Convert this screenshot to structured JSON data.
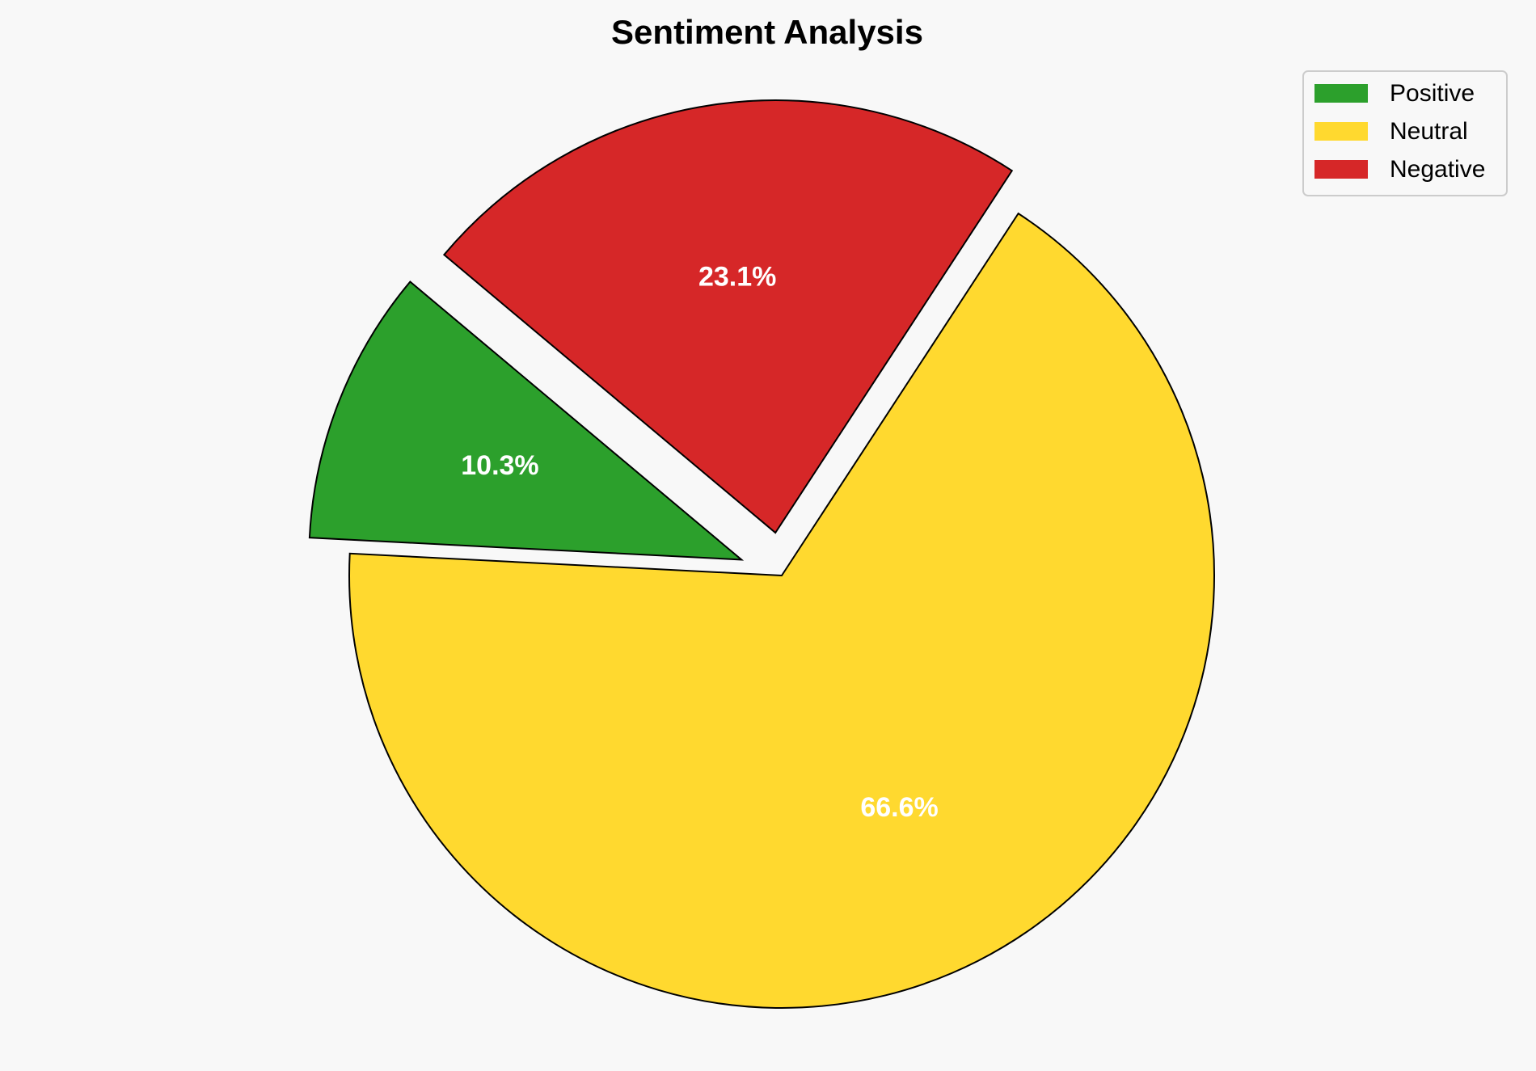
{
  "chart_data": {
    "type": "pie",
    "title": "Sentiment Analysis",
    "categories": [
      "Positive",
      "Neutral",
      "Negative"
    ],
    "values": [
      10.3,
      66.6,
      23.1
    ],
    "labels": [
      "10.3%",
      "66.6%",
      "23.1%"
    ],
    "colors": [
      "#2ca02c",
      "#ffd92f",
      "#d62728"
    ],
    "explode": [
      0.1,
      0,
      0.1
    ],
    "start_angle": 140,
    "direction": "counterclockwise",
    "edge_color": "#000000",
    "legend": {
      "placement": "top-right",
      "entries": [
        "Positive",
        "Neutral",
        "Negative"
      ]
    }
  }
}
